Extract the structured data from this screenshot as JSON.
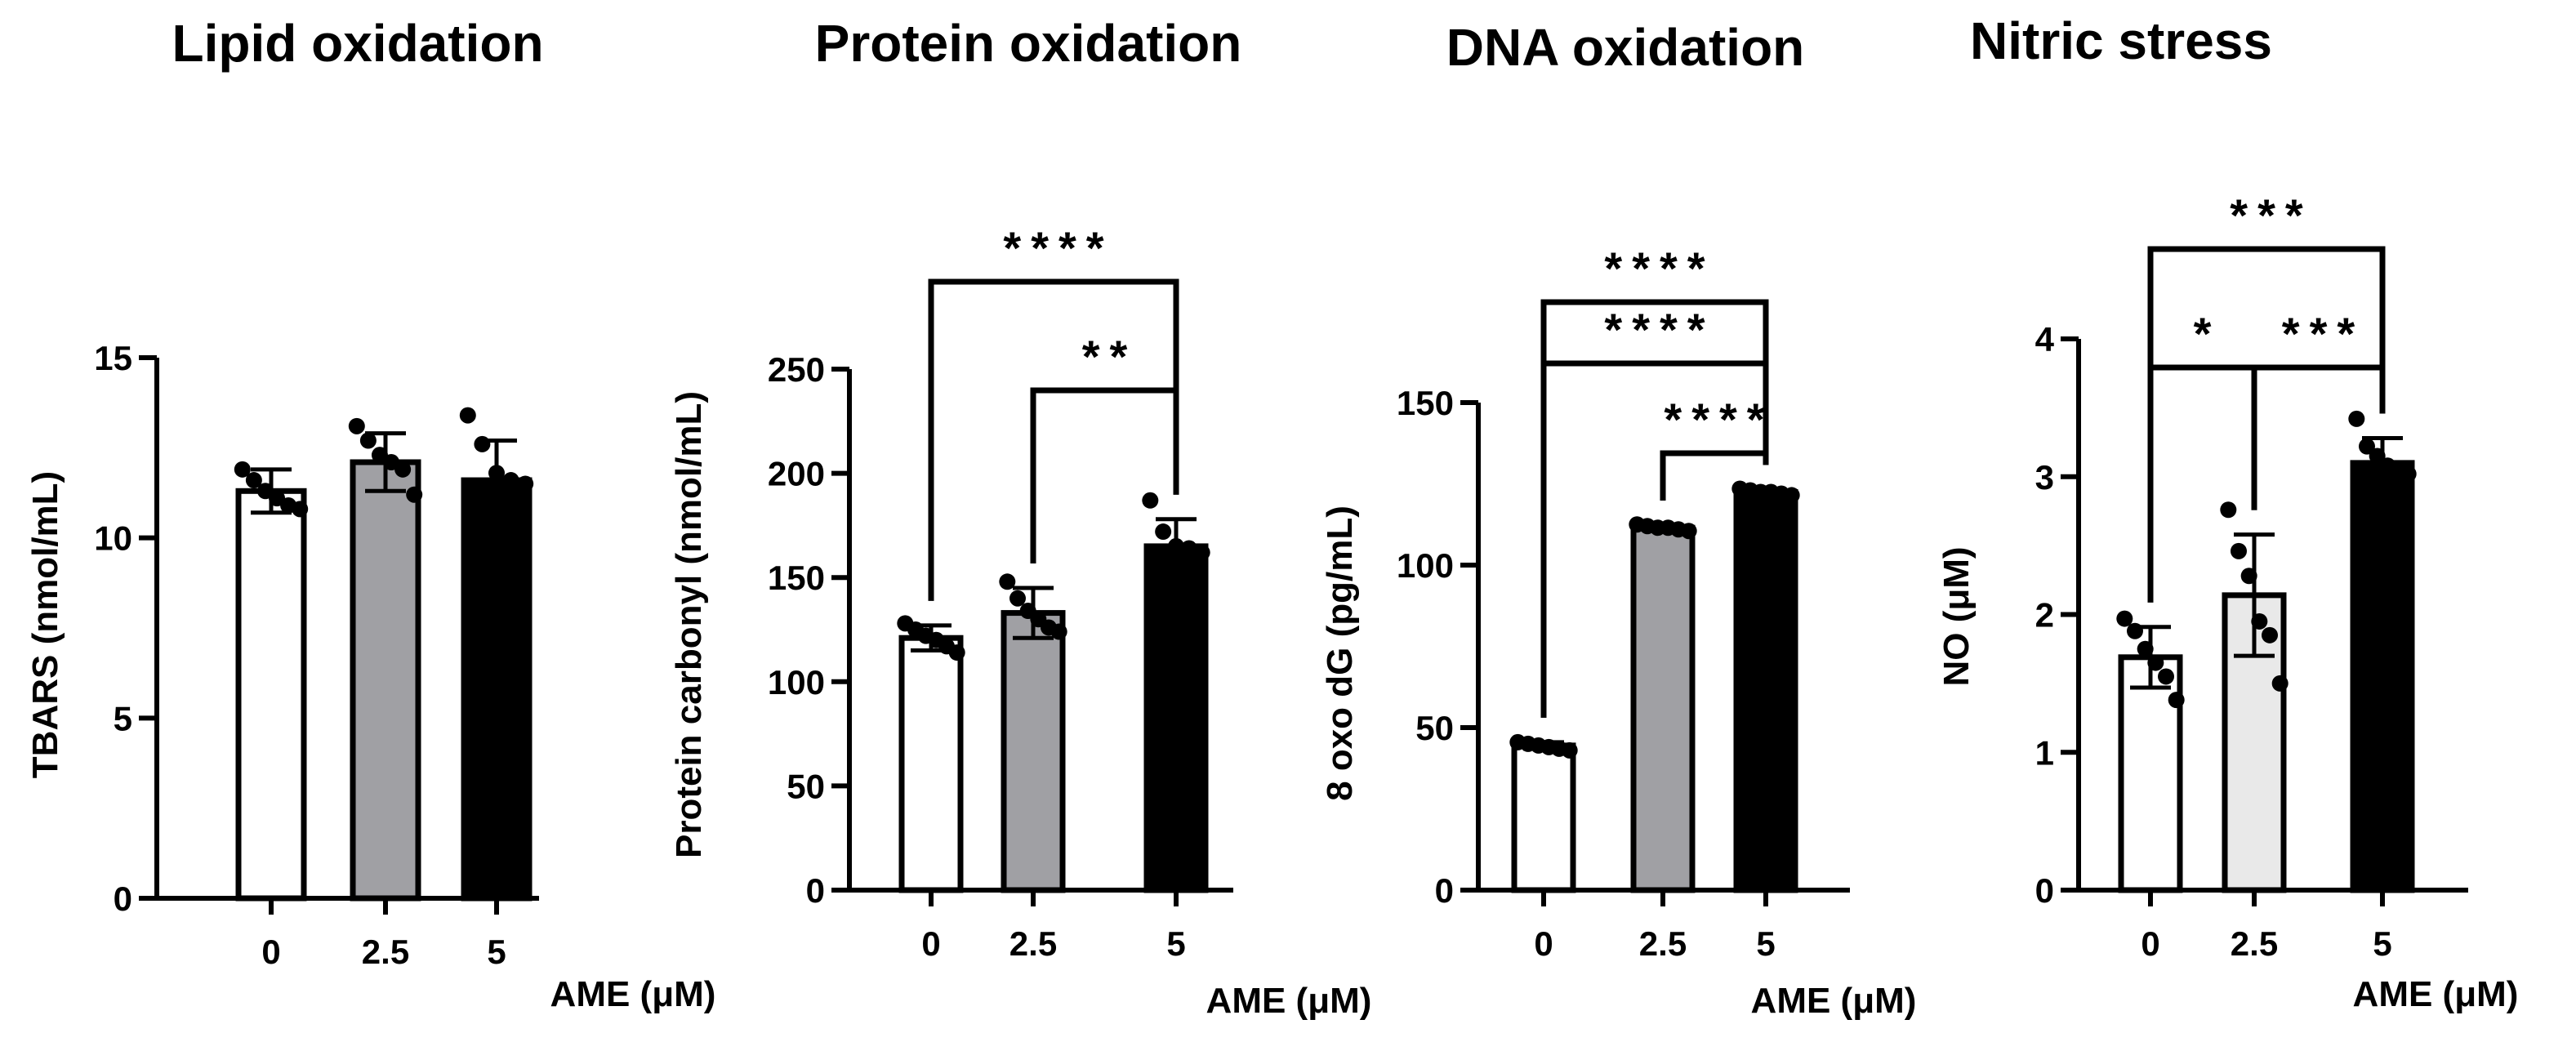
{
  "chart_data": [
    {
      "type": "bar",
      "title": "Lipid oxidation",
      "ylabel": "TBARS (nmol/mL)",
      "xlabel": "AME (μM)",
      "categories": [
        "0",
        "2.5",
        "5"
      ],
      "ylim": [
        0,
        15
      ],
      "yticks": [
        "0",
        "5",
        "10",
        "15"
      ],
      "values": [
        11.3,
        12.1,
        11.6
      ],
      "errors": [
        0.6,
        0.8,
        1.1
      ],
      "bar_fill_colors": [
        "#ffffff",
        "#a0a0a4",
        "#000000"
      ],
      "points": [
        [
          11.9,
          11.6,
          11.3,
          11.1,
          10.9,
          10.8
        ],
        [
          13.1,
          12.7,
          12.3,
          12.1,
          11.9,
          11.2
        ],
        [
          13.4,
          12.6,
          11.8,
          11.6,
          11.5
        ]
      ],
      "significance": []
    },
    {
      "type": "bar",
      "title": "Protein oxidation",
      "ylabel": "Protein carbonyl (nmol/mL)",
      "xlabel": "AME (μM)",
      "categories": [
        "0",
        "2.5",
        "5"
      ],
      "ylim": [
        0,
        250
      ],
      "yticks": [
        "0",
        "50",
        "100",
        "150",
        "200",
        "250"
      ],
      "values": [
        121,
        133,
        165
      ],
      "errors": [
        6,
        12,
        13
      ],
      "bar_fill_colors": [
        "#ffffff",
        "#a0a0a4",
        "#000000"
      ],
      "points": [
        [
          128,
          125,
          122,
          120,
          117,
          114
        ],
        [
          148,
          140,
          134,
          130,
          126,
          124
        ],
        [
          187,
          172,
          165,
          164,
          162
        ]
      ],
      "significance": [
        {
          "from": 1,
          "to": 2,
          "label": "**"
        },
        {
          "from": 0,
          "to": 2,
          "label": "****"
        }
      ]
    },
    {
      "type": "bar",
      "title": "DNA oxidation",
      "ylabel": "8 oxo dG (pg/mL)",
      "xlabel": "AME (μM)",
      "categories": [
        "0",
        "2.5",
        "5"
      ],
      "ylim": [
        0,
        150
      ],
      "yticks": [
        "0",
        "50",
        "100",
        "150"
      ],
      "values": [
        44.5,
        111.5,
        122.5
      ],
      "errors": [
        1.0,
        0.8,
        0.8
      ],
      "bar_fill_colors": [
        "#ffffff",
        "#a0a0a4",
        "#000000"
      ],
      "points": [
        [
          45.5,
          45,
          44.5,
          44,
          43.5,
          43
        ],
        [
          112.5,
          112,
          111.5,
          111.5,
          111,
          110.5
        ],
        [
          123.5,
          123,
          122.5,
          122.5,
          122,
          121.5
        ]
      ],
      "significance": [
        {
          "from": 1,
          "to": 2,
          "label": "****"
        },
        {
          "from": 0,
          "to": 2,
          "label": "****"
        },
        {
          "from": 0,
          "to": 2,
          "label": "****"
        }
      ]
    },
    {
      "type": "bar",
      "title": "Nitric stress",
      "ylabel": "NO (μM)",
      "xlabel": "AME (μM)",
      "categories": [
        "0",
        "2.5",
        "5"
      ],
      "ylim": [
        0,
        4
      ],
      "yticks": [
        "0",
        "1",
        "2",
        "3",
        "4"
      ],
      "values": [
        1.69,
        2.14,
        3.1
      ],
      "errors": [
        0.22,
        0.44,
        0.18
      ],
      "bar_fill_colors": [
        "#ffffff",
        "#e9e9e9",
        "#000000"
      ],
      "points": [
        [
          1.97,
          1.88,
          1.75,
          1.65,
          1.55,
          1.38
        ],
        [
          2.76,
          2.46,
          2.28,
          1.95,
          1.85,
          1.5
        ],
        [
          3.42,
          3.22,
          3.15,
          3.08,
          3.05,
          3.02
        ]
      ],
      "significance": [
        {
          "from": 0,
          "to": 1,
          "label": "*"
        },
        {
          "from": 1,
          "to": 2,
          "label": "***"
        },
        {
          "from": 0,
          "to": 2,
          "label": "***"
        }
      ]
    }
  ]
}
